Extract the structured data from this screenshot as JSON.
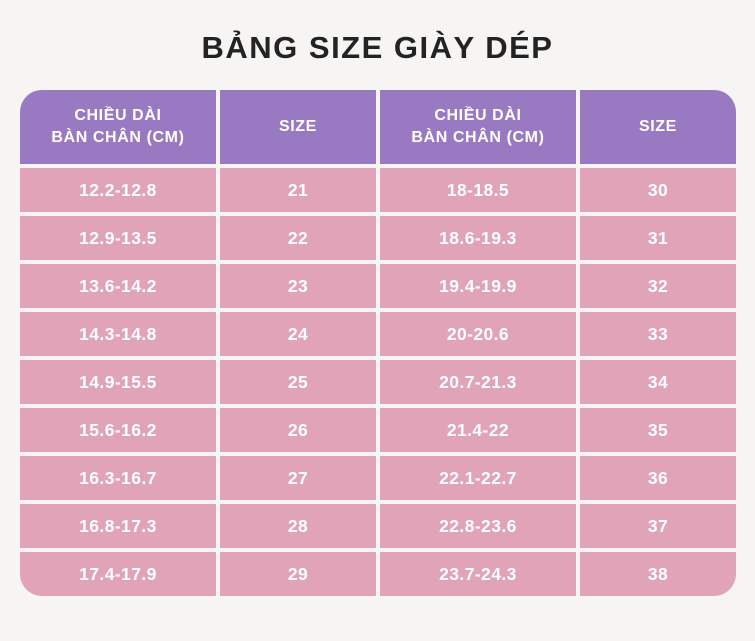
{
  "page": {
    "title": "BẢNG SIZE GIÀY DÉP",
    "background": "#f6f5f3"
  },
  "table": {
    "colors": {
      "header_bg": "#9879c2",
      "row_bg": "#e1a3b8",
      "text": "#ffffff"
    },
    "header": [
      "CHIỀU DÀI\nBÀN CHÂN (CM)",
      "SIZE",
      "CHIỀU DÀI\nBÀN CHÂN (CM)",
      "SIZE"
    ],
    "rows": [
      [
        "12.2-12.8",
        "21",
        "18-18.5",
        "30"
      ],
      [
        "12.9-13.5",
        "22",
        "18.6-19.3",
        "31"
      ],
      [
        "13.6-14.2",
        "23",
        "19.4-19.9",
        "32"
      ],
      [
        "14.3-14.8",
        "24",
        "20-20.6",
        "33"
      ],
      [
        "14.9-15.5",
        "25",
        "20.7-21.3",
        "34"
      ],
      [
        "15.6-16.2",
        "26",
        "21.4-22",
        "35"
      ],
      [
        "16.3-16.7",
        "27",
        "22.1-22.7",
        "36"
      ],
      [
        "16.8-17.3",
        "28",
        "22.8-23.6",
        "37"
      ],
      [
        "17.4-17.9",
        "29",
        "23.7-24.3",
        "38"
      ]
    ]
  }
}
